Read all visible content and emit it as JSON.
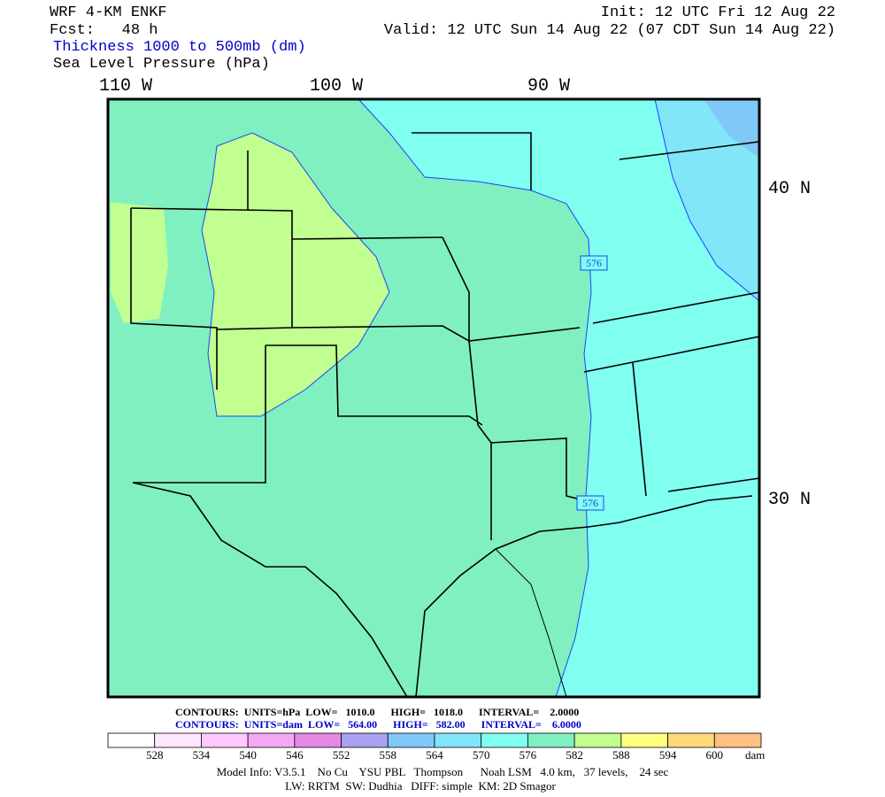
{
  "header": {
    "model": "WRF 4-KM ENKF",
    "forecast": "Fcst:   48 h",
    "field1": "Thickness 1000 to 500mb (dm)",
    "field2": "Sea Level Pressure (hPa)",
    "init": "Init: 12 UTC Fri 12 Aug 22",
    "valid": "Valid: 12 UTC Sun 14 Aug 22 (07 CDT Sun 14 Aug 22)"
  },
  "map": {
    "lon_labels": [
      "110 W",
      "100 W",
      "90 W"
    ],
    "lat_labels": [
      "40 N",
      "30 N"
    ],
    "contour_labels": [
      "576",
      "576"
    ]
  },
  "contours": {
    "pressure": "CONTOURS:  UNITS=hPa  LOW=   1010.0      HIGH=   1018.0      INTERVAL=    2.0000",
    "thickness": "CONTOURS:  UNITS=dam  LOW=   564.00      HIGH=   582.00      INTERVAL=    6.0000"
  },
  "colorbar": {
    "colors": [
      "#ffffff",
      "#ffe6ff",
      "#ffc8ff",
      "#f4a8f4",
      "#e48ae4",
      "#a8a0f0",
      "#80c8f8",
      "#80e6f8",
      "#80fff0",
      "#80f0c0",
      "#c0ff90",
      "#ffff80",
      "#ffd878",
      "#ffc080"
    ],
    "labels": [
      528,
      534,
      540,
      546,
      552,
      558,
      564,
      570,
      576,
      582,
      588,
      594,
      600
    ],
    "unit": "dam"
  },
  "footer": {
    "model_info": "Model Info: V3.5.1    No Cu    YSU PBL   Thompson      Noah LSM   4.0 km,   37 levels,    24 sec",
    "physics": "LW: RRTM  SW: Dudhia   DIFF: simple  KM: 2D Smagor"
  }
}
